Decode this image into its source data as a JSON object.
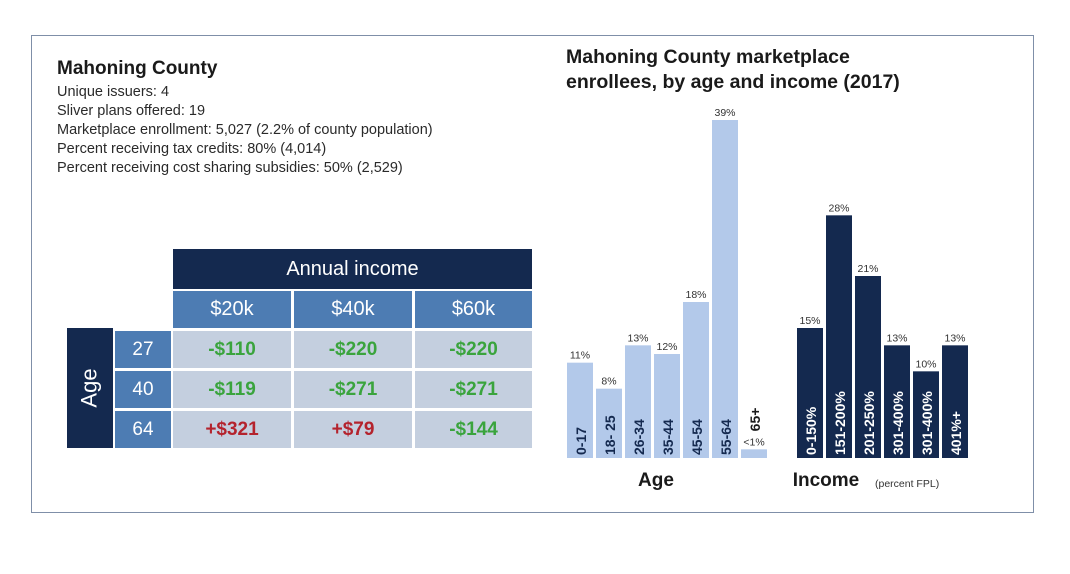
{
  "county_info": {
    "title": "Mahoning County",
    "lines": [
      "Unique issuers: 4",
      "Sliver plans offered: 19",
      "Marketplace enrollment: 5,027 (2.2% of county population)",
      "Percent receiving tax credits: 80% (4,014)",
      "Percent receiving cost sharing subsidies: 50% (2,529)"
    ]
  },
  "table": {
    "header": "Annual income",
    "row_axis_label": "Age",
    "columns": [
      "$20k",
      "$40k",
      "$60k"
    ],
    "rows": [
      {
        "age": "27",
        "values": [
          "-$110",
          "-$220",
          "-$220"
        ],
        "signs": [
          "neg",
          "neg",
          "neg"
        ]
      },
      {
        "age": "40",
        "values": [
          "-$119",
          "-$271",
          "-$271"
        ],
        "signs": [
          "neg",
          "neg",
          "neg"
        ]
      },
      {
        "age": "64",
        "values": [
          "+$321",
          "+$79",
          "-$144"
        ],
        "signs": [
          "pos",
          "pos",
          "neg"
        ]
      }
    ]
  },
  "chart_title_line1": "Mahoning County marketplace",
  "chart_title_line2": "enrollees, by age and income (2017)",
  "chart_data": [
    {
      "type": "bar",
      "xlabel": "Age",
      "categories": [
        "0-17",
        "18- 25",
        "26-34",
        "35-44",
        "45-54",
        "55-64",
        "65+"
      ],
      "values": [
        11,
        8,
        13,
        12,
        18,
        39,
        1
      ],
      "labels": [
        "11%",
        "8%",
        "13%",
        "12%",
        "18%",
        "39%",
        "<1%"
      ],
      "ylim": [
        0,
        39
      ],
      "color": "#b3c9ea"
    },
    {
      "type": "bar",
      "xlabel": "Income",
      "xlabel_note": "(percent FPL)",
      "categories": [
        "0-150%",
        "151-200%",
        "201-250%",
        "301-400%",
        "301-400%",
        "401%+"
      ],
      "values": [
        15,
        28,
        21,
        13,
        10,
        13
      ],
      "labels": [
        "15%",
        "28%",
        "21%",
        "13%",
        "10%",
        "13%"
      ],
      "ylim": [
        0,
        39
      ],
      "color": "#14294f"
    }
  ]
}
